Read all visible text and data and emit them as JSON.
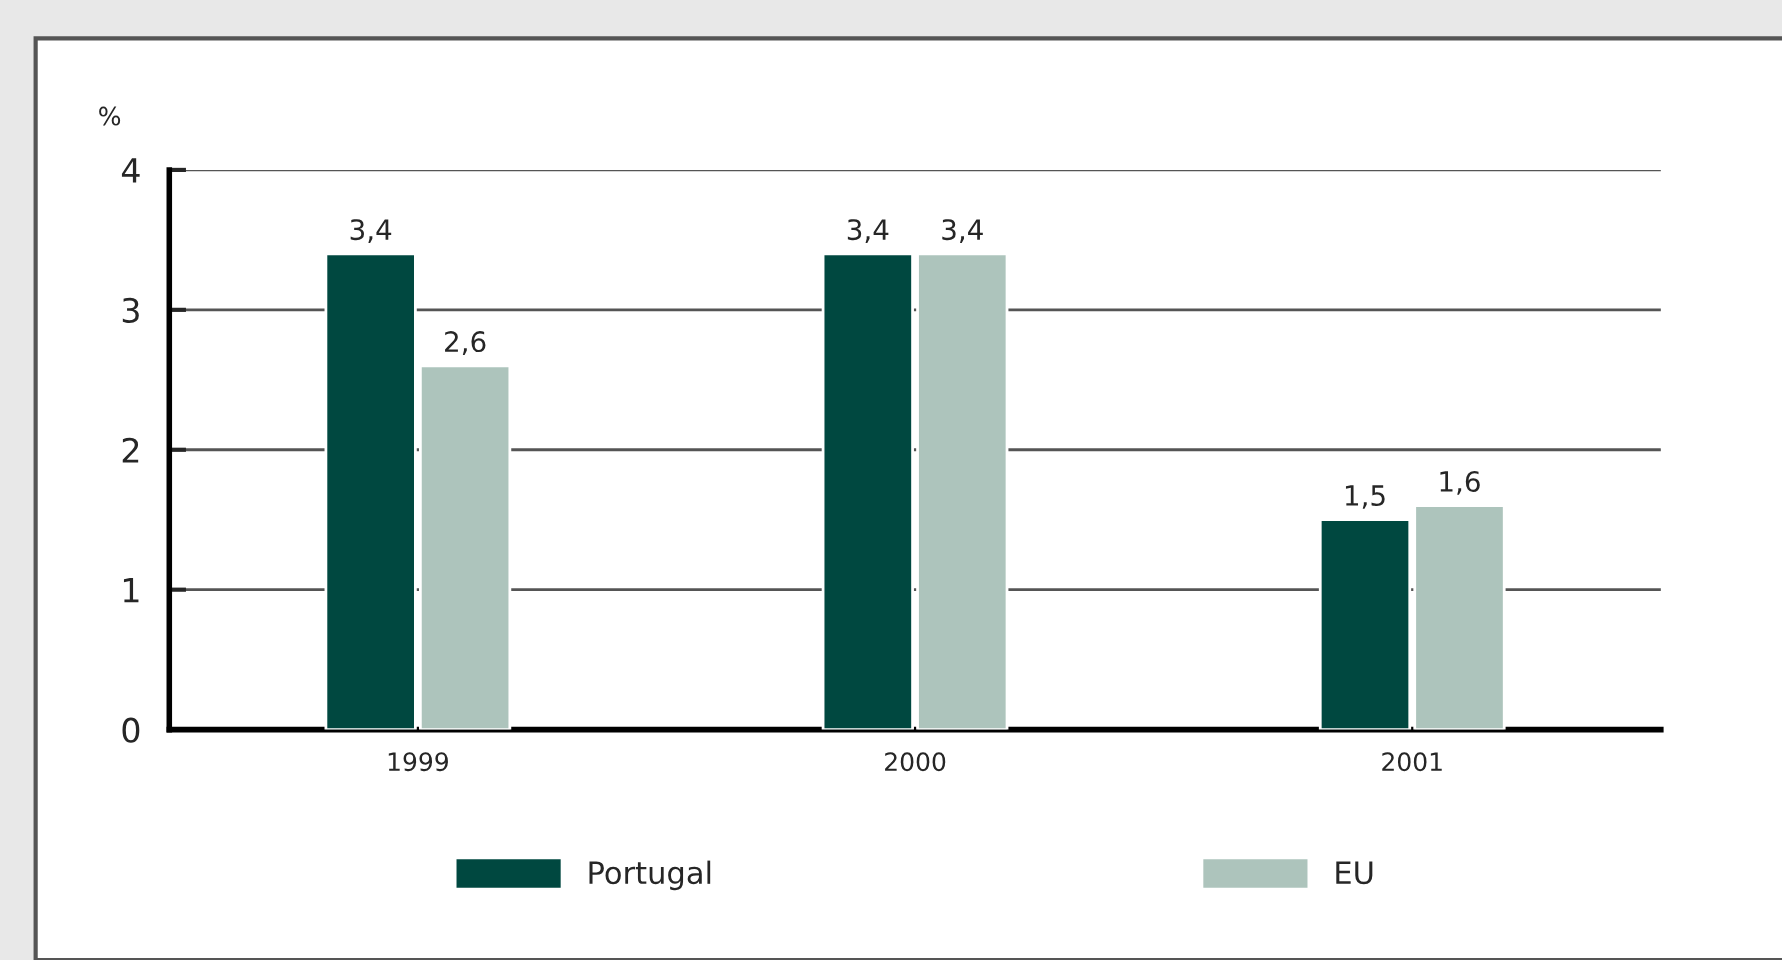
{
  "chart_data": {
    "type": "bar",
    "ylabel": "%",
    "categories": [
      "1999",
      "2000",
      "2001"
    ],
    "series": [
      {
        "name": "Portugal",
        "color": "#004840",
        "values": [
          3.4,
          3.4,
          1.5
        ],
        "value_labels": [
          "3,4",
          "3,4",
          "1,5"
        ]
      },
      {
        "name": "EU",
        "color": "#adc4bc",
        "values": [
          2.6,
          3.4,
          1.6
        ],
        "value_labels": [
          "2,6",
          "3,4",
          "1,6"
        ]
      }
    ],
    "ylim": [
      0,
      4
    ],
    "yticks": [
      0,
      1,
      2,
      3,
      4
    ],
    "grid": "y",
    "legend": "bottom"
  }
}
